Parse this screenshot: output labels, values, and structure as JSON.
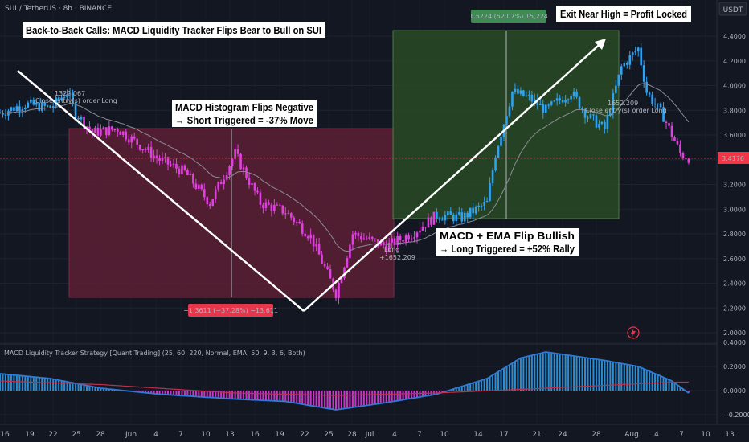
{
  "header": {
    "symbol_line": "SUI / TetherUS · 8h · BINANCE",
    "currency_badge": "USDT"
  },
  "annotations": {
    "headline": "Back-to-Back Calls: MACD Liquidity Tracker Flips Bear to Bull on SUI",
    "exit_note": "Exit Near High = Profit Locked",
    "short_line1": "MACD Histogram Flips Negative",
    "short_line2": "→ Short Triggered = -37% Move",
    "long_line1": "MACD + EMA Flip Bullish",
    "long_line2": "→ Long Triggered = +52% Rally",
    "short_measure": "−1.3611 (−37.28%) −13,611",
    "long_measure": "1.5224 (52.07%) 15,224",
    "entry1_price": "1322.067",
    "entry1_label": "Close entry(s) order Long",
    "long_entry_label": "Long",
    "long_entry_price": "+1652.209",
    "exit_price": "1652.209",
    "exit_label": "Close entry(s) order Long"
  },
  "indicator": {
    "title": "MACD Liquidity Tracker Strategy [Quant Trading] (25, 60, 220, Normal, EMA, 50, 9, 3, 6, Both)"
  },
  "price_axis": {
    "ticks": [
      "4.4000",
      "4.2000",
      "4.0000",
      "3.8000",
      "3.6000",
      "3.4000",
      "3.2000",
      "3.0000",
      "2.8000",
      "2.6000",
      "2.4000",
      "2.2000",
      "2.0000"
    ],
    "current_price": "3.4176"
  },
  "macd_axis": {
    "ticks": [
      "0.4000",
      "0.2000",
      "0.0000",
      "−0.2000"
    ]
  },
  "time_axis": {
    "ticks": [
      "16",
      "19",
      "22",
      "25",
      "28",
      "Jun",
      "4",
      "7",
      "10",
      "13",
      "16",
      "19",
      "22",
      "25",
      "28",
      "Jul",
      "4",
      "7",
      "10",
      "14",
      "17",
      "21",
      "24",
      "28",
      "Aug",
      "4",
      "7",
      "10",
      "13"
    ]
  },
  "colors": {
    "background": "#131722",
    "bull": "#2ea3f2",
    "bear": "#e040e0",
    "short_zone": "#5c1f34",
    "long_zone": "#2a4a25",
    "macd_line": "#2e7ad6",
    "signal_line": "#c0304a",
    "current_price": "#f23645"
  },
  "chart_data": {
    "type": "candlestick",
    "title": "SUI / TetherUS · 8h · BINANCE",
    "y_axis_unit": "USDT",
    "ylim": [
      1.95,
      4.55
    ],
    "x_ticks": [
      "16",
      "19",
      "22",
      "25",
      "28",
      "Jun",
      "4",
      "7",
      "10",
      "13",
      "16",
      "19",
      "22",
      "25",
      "28",
      "Jul",
      "4",
      "7",
      "10",
      "14",
      "17",
      "21",
      "24",
      "28",
      "Aug",
      "4",
      "7",
      "10",
      "13"
    ],
    "close_path": [
      {
        "date": "May 13",
        "close": 3.78
      },
      {
        "date": "May 16",
        "close": 3.85
      },
      {
        "date": "May 19",
        "close": 3.82
      },
      {
        "date": "May 21",
        "close": 3.95
      },
      {
        "date": "May 22",
        "close": 3.78
      },
      {
        "date": "May 24",
        "close": 3.62
      },
      {
        "date": "May 27",
        "close": 3.65
      },
      {
        "date": "May 29",
        "close": 3.55
      },
      {
        "date": "Jun 1",
        "close": 3.4
      },
      {
        "date": "Jun 4",
        "close": 3.3
      },
      {
        "date": "Jun 7",
        "close": 3.05
      },
      {
        "date": "Jun 10",
        "close": 3.45
      },
      {
        "date": "Jun 13",
        "close": 3.05
      },
      {
        "date": "Jun 16",
        "close": 2.98
      },
      {
        "date": "Jun 19",
        "close": 2.78
      },
      {
        "date": "Jun 22",
        "close": 2.32
      },
      {
        "date": "Jun 24",
        "close": 2.8
      },
      {
        "date": "Jun 28",
        "close": 2.7
      },
      {
        "date": "Jul 1",
        "close": 2.8
      },
      {
        "date": "Jul 4",
        "close": 2.95
      },
      {
        "date": "Jul 7",
        "close": 2.93
      },
      {
        "date": "Jul 10",
        "close": 3.05
      },
      {
        "date": "Jul 11",
        "close": 3.45
      },
      {
        "date": "Jul 13",
        "close": 3.95
      },
      {
        "date": "Jul 15",
        "close": 3.9
      },
      {
        "date": "Jul 17",
        "close": 3.8
      },
      {
        "date": "Jul 20",
        "close": 3.95
      },
      {
        "date": "Jul 22",
        "close": 3.75
      },
      {
        "date": "Jul 24",
        "close": 3.65
      },
      {
        "date": "Jul 26",
        "close": 4.15
      },
      {
        "date": "Jul 28",
        "close": 4.3
      },
      {
        "date": "Jul 29",
        "close": 3.95
      },
      {
        "date": "Jul 31",
        "close": 3.75
      },
      {
        "date": "Aug 2",
        "close": 3.45
      },
      {
        "date": "Aug 3",
        "close": 3.4176
      }
    ],
    "zones": [
      {
        "side": "short",
        "from": "May 24",
        "to": "Jul 4",
        "top": 3.65,
        "bottom": 2.29,
        "change": "−37.28%"
      },
      {
        "side": "long",
        "from": "Jul 4",
        "to": "Aug 1",
        "top": 4.45,
        "bottom": 2.93,
        "change": "52.07%"
      }
    ],
    "trend_lines": [
      {
        "from": {
          "date": "May 15",
          "price": 4.12
        },
        "to": {
          "date": "Jun 22",
          "price": 2.18
        }
      },
      {
        "from": {
          "date": "Jun 22",
          "price": 2.18
        },
        "to": {
          "date": "Jul 31",
          "price": 4.38
        }
      }
    ],
    "macd": {
      "ylim": [
        -0.28,
        0.42
      ],
      "macd_line": [
        {
          "date": "May 13",
          "value": 0.14
        },
        {
          "date": "May 19",
          "value": 0.1
        },
        {
          "date": "May 25",
          "value": 0.02
        },
        {
          "date": "Jun 1",
          "value": -0.03
        },
        {
          "date": "Jun 10",
          "value": -0.07
        },
        {
          "date": "Jun 16",
          "value": -0.09
        },
        {
          "date": "Jun 22",
          "value": -0.16
        },
        {
          "date": "Jun 28",
          "value": -0.1
        },
        {
          "date": "Jul 4",
          "value": -0.03
        },
        {
          "date": "Jul 10",
          "value": 0.1
        },
        {
          "date": "Jul 14",
          "value": 0.27
        },
        {
          "date": "Jul 17",
          "value": 0.32
        },
        {
          "date": "Jul 24",
          "value": 0.25
        },
        {
          "date": "Jul 28",
          "value": 0.2
        },
        {
          "date": "Aug 1",
          "value": 0.08
        },
        {
          "date": "Aug 3",
          "value": -0.02
        }
      ],
      "signal_line": [
        {
          "date": "May 13",
          "value": 0.08
        },
        {
          "date": "May 25",
          "value": 0.05
        },
        {
          "date": "Jun 10",
          "value": -0.02
        },
        {
          "date": "Jun 22",
          "value": -0.04
        },
        {
          "date": "Jul 4",
          "value": -0.02
        },
        {
          "date": "Jul 17",
          "value": 0.02
        },
        {
          "date": "Aug 1",
          "value": 0.07
        },
        {
          "date": "Aug 3",
          "value": 0.07
        }
      ]
    }
  }
}
